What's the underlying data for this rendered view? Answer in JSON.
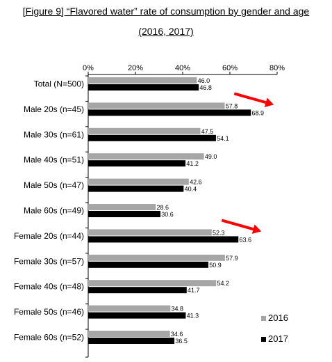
{
  "title_line1": "[Figure 9] “Flavored water” rate of consumption by gender and age",
  "title_line2": "(2016, 2017)",
  "chart_data": {
    "type": "bar",
    "orientation": "horizontal",
    "categories": [
      "Total (N=500)",
      "Male 20s (n=45)",
      "Male 30s (n=61)",
      "Male 40s (n=51)",
      "Male 50s (n=47)",
      "Male 60s (n=49)",
      "Female 20s (n=44)",
      "Female 30s (n=57)",
      "Female 40s (n=48)",
      "Female 50s (n=46)",
      "Female 60s (n=52)"
    ],
    "series": [
      {
        "name": "2016",
        "color": "#a6a6a6",
        "values": [
          46.0,
          57.8,
          47.5,
          49.0,
          42.6,
          28.6,
          52.3,
          57.9,
          54.2,
          34.8,
          34.6
        ],
        "labels": [
          "46.0",
          "57.8",
          "47.5",
          "49.0",
          "42.6",
          "28.6",
          "52.3",
          "57.9",
          "54.2",
          "34.8",
          "34.6"
        ]
      },
      {
        "name": "2017",
        "color": "#000000",
        "values": [
          46.8,
          68.9,
          54.1,
          41.2,
          40.4,
          30.6,
          63.6,
          50.9,
          41.7,
          41.3,
          36.5
        ],
        "labels": [
          "46.8",
          "68.9",
          "54.1",
          "41.2",
          "40.4",
          "30.6",
          "63.6",
          "50.9",
          "41.7",
          "41.3",
          "36.5"
        ]
      }
    ],
    "xlim": [
      0,
      80
    ],
    "ticks": [
      0,
      20,
      40,
      60,
      80
    ],
    "tick_labels": [
      "0%",
      "20%",
      "40%",
      "60%",
      "80%"
    ],
    "grid": false,
    "legend_position": "bottom-right",
    "annotations": [
      {
        "type": "arrow",
        "category": "Male 20s (n=45)",
        "color": "#ff0000"
      },
      {
        "type": "arrow",
        "category": "Female 20s (n=44)",
        "color": "#ff0000"
      }
    ]
  }
}
